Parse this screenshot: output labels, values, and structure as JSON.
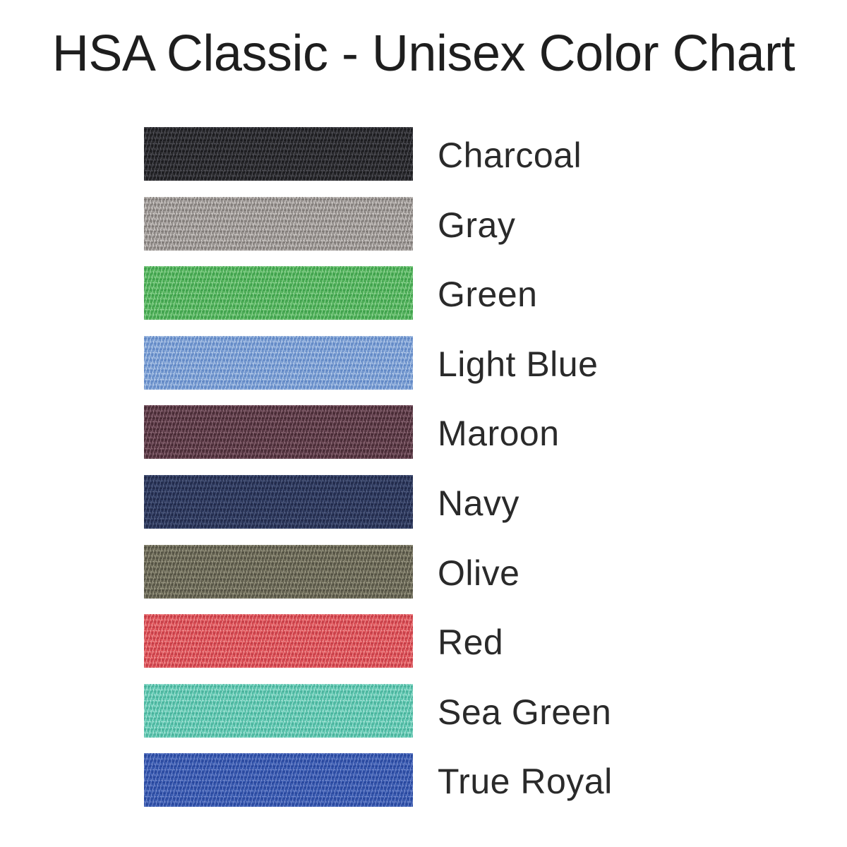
{
  "chart_data": {
    "type": "table",
    "title": "HSA Classic - Unisex Color Chart",
    "columns": [
      "swatch",
      "color_name"
    ],
    "legend_position": "right-of-swatch",
    "rows": [
      {
        "label": "Charcoal",
        "swatch_base": "#2d2d30",
        "swatch_light": "#515158",
        "swatch_dark": "#18181b"
      },
      {
        "label": "Gray",
        "swatch_base": "#a29d9a",
        "swatch_light": "#ccc8c5",
        "swatch_dark": "#7a7572"
      },
      {
        "label": "Green",
        "swatch_base": "#57b45e",
        "swatch_light": "#90d595",
        "swatch_dark": "#3a9d48"
      },
      {
        "label": "Light Blue",
        "swatch_base": "#7c9fd3",
        "swatch_light": "#b4cae9",
        "swatch_dark": "#5d84c3"
      },
      {
        "label": "Maroon",
        "swatch_base": "#5d3b48",
        "swatch_light": "#8c6a76",
        "swatch_dark": "#422730"
      },
      {
        "label": "Navy",
        "swatch_base": "#2e3a5f",
        "swatch_light": "#525e81",
        "swatch_dark": "#1e2645"
      },
      {
        "label": "Olive",
        "swatch_base": "#6d6b58",
        "swatch_light": "#9b9884",
        "swatch_dark": "#4f4d40"
      },
      {
        "label": "Red",
        "swatch_base": "#e0545a",
        "swatch_light": "#f19092",
        "swatch_dark": "#bf3943"
      },
      {
        "label": "Sea Green",
        "swatch_base": "#62cab3",
        "swatch_light": "#a4e3d6",
        "swatch_dark": "#45ae98"
      },
      {
        "label": "True Royal",
        "swatch_base": "#3a5cb1",
        "swatch_light": "#7289cd",
        "swatch_dark": "#26449a"
      }
    ]
  },
  "page": {
    "background": "#ffffff",
    "title_color": "#1e1e1e",
    "label_color": "#2a2a2a"
  }
}
